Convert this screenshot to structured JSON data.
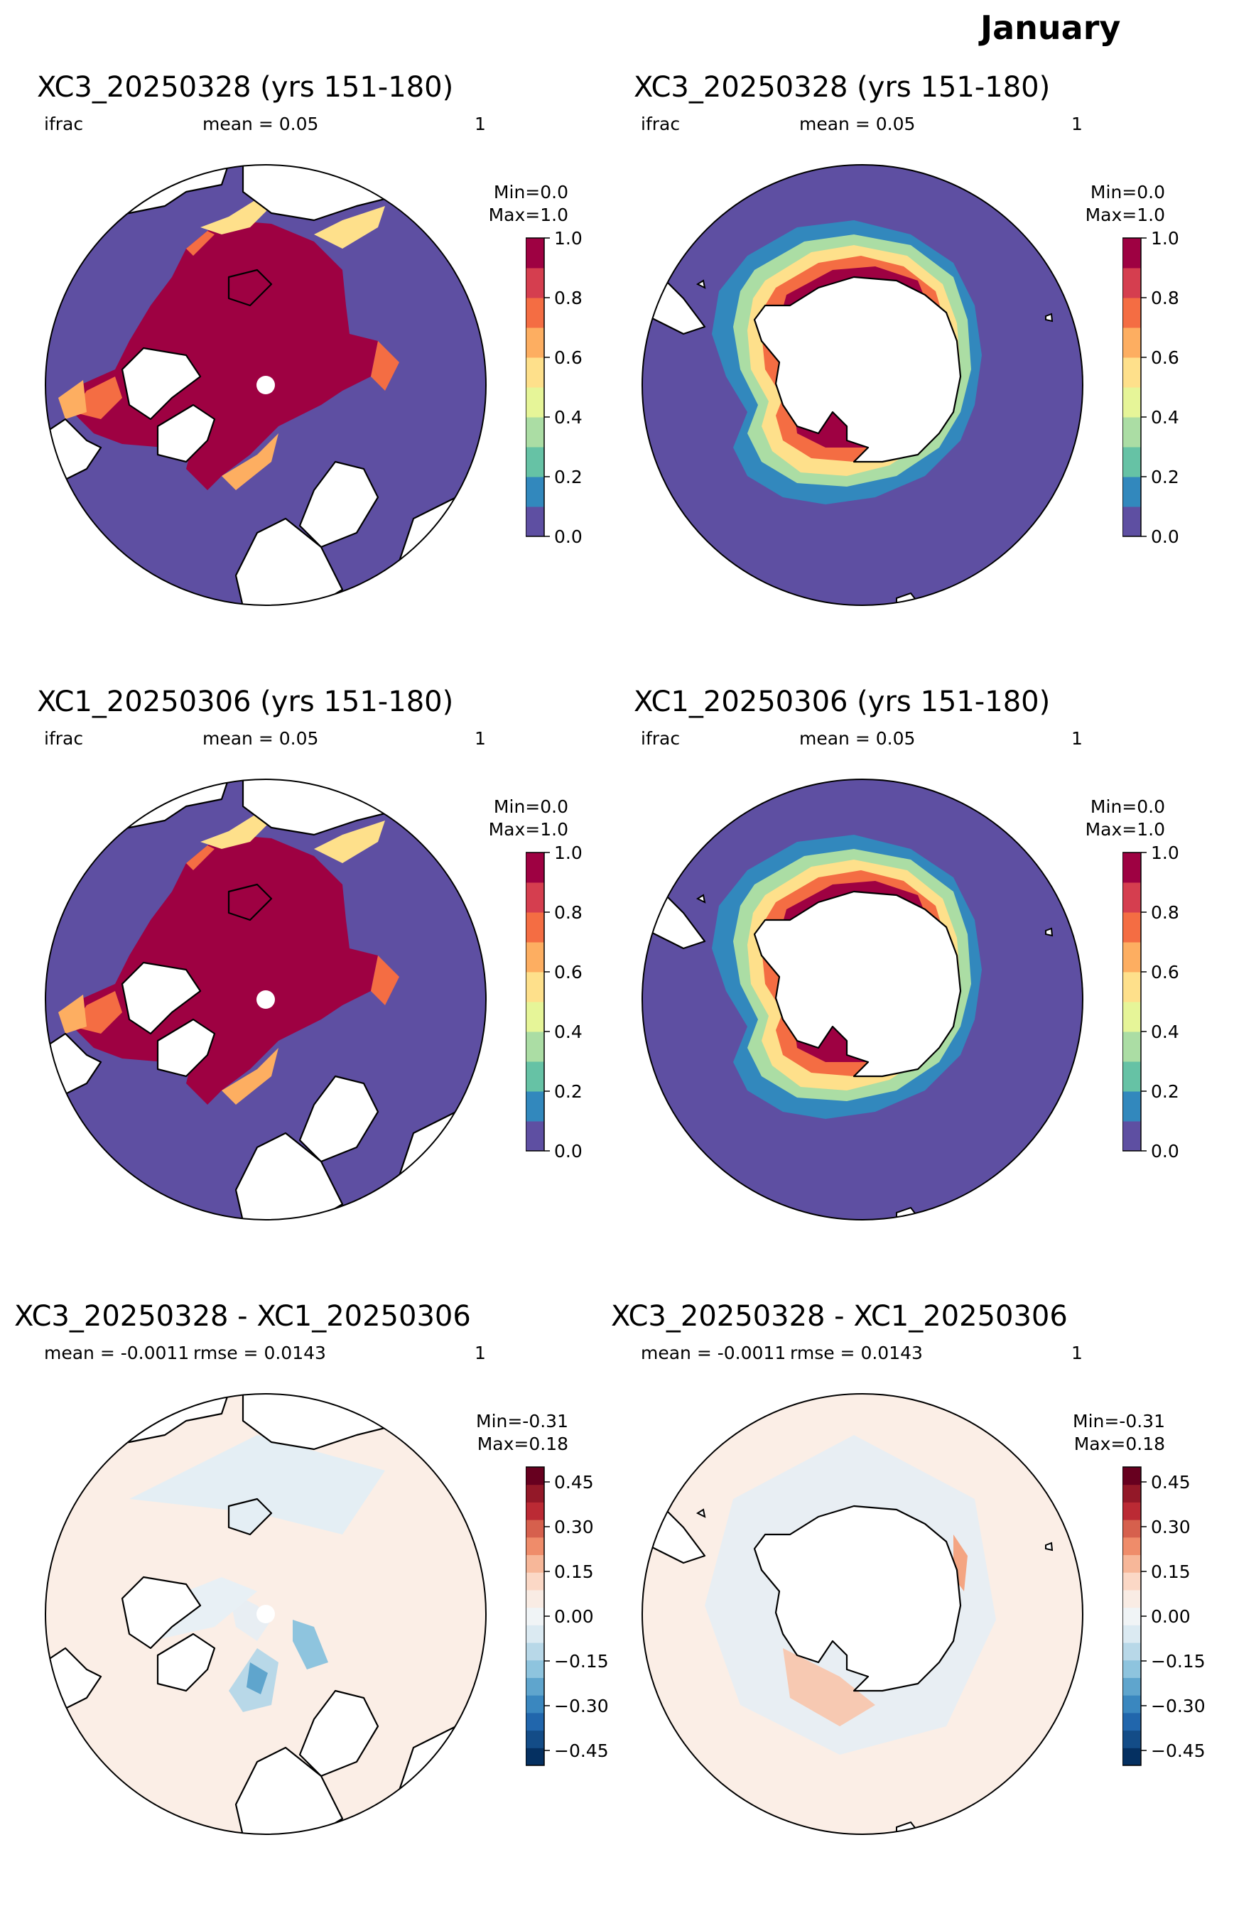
{
  "month": "January",
  "colors": {
    "ocean_open": "#5e4fa2",
    "ice_full": "#9e0142",
    "diff_bg": "#fbeee6"
  },
  "panels": [
    {
      "id": "p1",
      "title": "XC3_20250328 (yrs 151-180)",
      "var": "ifrac",
      "stat": "mean = 0.05",
      "extra": "1",
      "min": "Min=0.0",
      "max": "Max=1.0",
      "hemi": "north",
      "kind": "ice"
    },
    {
      "id": "p2",
      "title": "XC3_20250328 (yrs 151-180)",
      "var": "ifrac",
      "stat": "mean = 0.05",
      "extra": "1",
      "min": "Min=0.0",
      "max": "Max=1.0",
      "hemi": "south",
      "kind": "ice"
    },
    {
      "id": "p3",
      "title": "XC1_20250306 (yrs 151-180)",
      "var": "ifrac",
      "stat": "mean = 0.05",
      "extra": "1",
      "min": "Min=0.0",
      "max": "Max=1.0",
      "hemi": "north",
      "kind": "ice"
    },
    {
      "id": "p4",
      "title": "XC1_20250306 (yrs 151-180)",
      "var": "ifrac",
      "stat": "mean = 0.05",
      "extra": "1",
      "min": "Min=0.0",
      "max": "Max=1.0",
      "hemi": "south",
      "kind": "ice"
    },
    {
      "id": "p5",
      "title": "XC3_20250328 - XC1_20250306",
      "var": "mean = -0.0011",
      "stat": "rmse = 0.0143",
      "extra": "1",
      "min": "Min=-0.31",
      "max": "Max=0.18",
      "hemi": "north",
      "kind": "diff"
    },
    {
      "id": "p6",
      "title": "XC3_20250328 - XC1_20250306",
      "var": "mean = -0.0011",
      "stat": "rmse = 0.0143",
      "extra": "1",
      "min": "Min=-0.31",
      "max": "Max=0.18",
      "hemi": "south",
      "kind": "diff"
    }
  ],
  "colorbars": {
    "ice": {
      "ticks": [
        "0.0",
        "0.2",
        "0.4",
        "0.6",
        "0.8",
        "1.0"
      ],
      "colors": [
        "#5e4fa2",
        "#3288bd",
        "#66c2a5",
        "#abdda4",
        "#e6f598",
        "#fee08b",
        "#fdae61",
        "#f46d43",
        "#d53e4f",
        "#9e0142"
      ]
    },
    "diff": {
      "ticks": [
        "−0.45",
        "−0.30",
        "−0.15",
        "0.00",
        "0.15",
        "0.30",
        "0.45"
      ],
      "colors": [
        "#053061",
        "#134c87",
        "#2166ac",
        "#3a87bf",
        "#5fa5cd",
        "#8ec4de",
        "#b8d8e8",
        "#dbeaf2",
        "#f0f4f6",
        "#f9ece4",
        "#fbd8c6",
        "#f7b799",
        "#ef8c6a",
        "#d6604d",
        "#bb2a34",
        "#931828",
        "#67001f"
      ]
    }
  }
}
